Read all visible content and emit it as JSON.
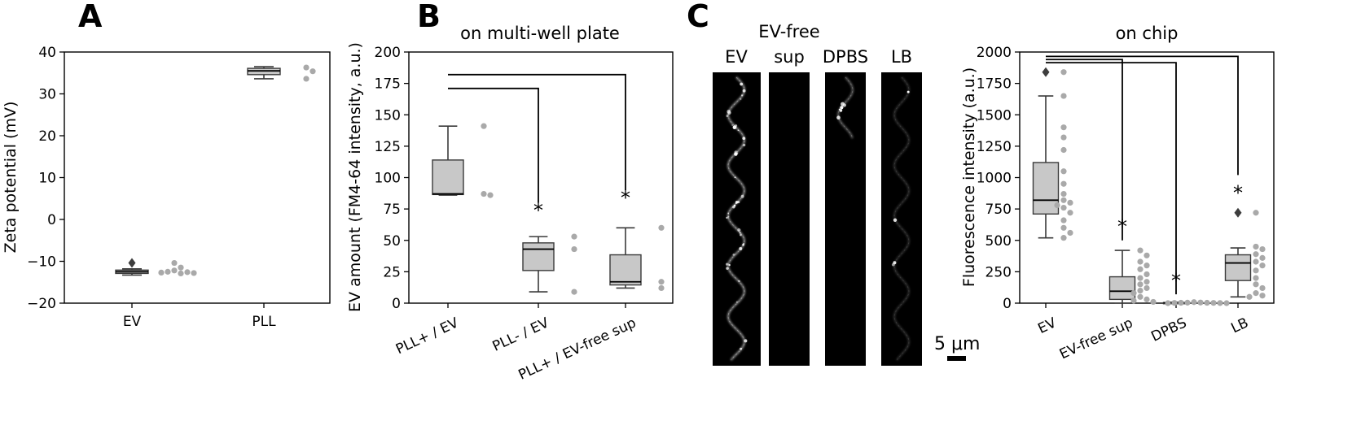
{
  "colors": {
    "box_fill": "#c8c8c8",
    "box_edge": "#3a3a3a",
    "point": "#a9a9a9",
    "text": "#000000",
    "micro_bg": "#000000"
  },
  "panels": {
    "a": "A",
    "b": "B",
    "c": "C"
  },
  "chart_data": [
    {
      "type": "box",
      "panel": "A",
      "title": "",
      "xlabel": "",
      "ylabel": "Zeta potential (mV)",
      "ylim": [
        -20,
        40
      ],
      "yticks": [
        "−20",
        "−10",
        "0",
        "10",
        "20",
        "30",
        "40"
      ],
      "ytick_values": [
        -20,
        -10,
        0,
        10,
        20,
        30,
        40
      ],
      "grid": false,
      "categories": [
        "EV",
        "PLL"
      ],
      "boxes": [
        {
          "whislo": -13.3,
          "q1": -12.9,
          "med": -12.5,
          "q3": -12.1,
          "whishi": -11.8,
          "fliers": [
            -10.4
          ]
        },
        {
          "whislo": 33.6,
          "q1": 34.6,
          "med": 35.5,
          "q3": 36.1,
          "whishi": 36.5,
          "fliers": []
        }
      ],
      "points": [
        [
          -10.4,
          -11.5,
          -12.2,
          -12.8,
          -12.5,
          -12.6,
          -12.9,
          -12.7
        ],
        [
          36.3,
          35.4,
          33.6
        ]
      ],
      "annotations": []
    },
    {
      "type": "box",
      "panel": "B",
      "title": "on multi-well plate",
      "xlabel": "",
      "ylabel": "EV amount (FM4-64 intensity, a.u.)",
      "ylim": [
        0,
        200
      ],
      "yticks": [
        "0",
        "25",
        "50",
        "75",
        "100",
        "125",
        "150",
        "175",
        "200"
      ],
      "ytick_values": [
        0,
        25,
        50,
        75,
        100,
        125,
        150,
        175,
        200
      ],
      "grid": false,
      "categories": [
        "PLL+ / EV",
        "PLL- / EV",
        "PLL+ / EV-free sup"
      ],
      "boxes": [
        {
          "whislo": 86,
          "q1": 86.5,
          "med": 87,
          "q3": 114,
          "whishi": 141,
          "fliers": []
        },
        {
          "whislo": 9,
          "q1": 26,
          "med": 43,
          "q3": 48,
          "whishi": 53,
          "fliers": []
        },
        {
          "whislo": 12,
          "q1": 14.5,
          "med": 17,
          "q3": 38.5,
          "whishi": 60,
          "fliers": []
        }
      ],
      "points": [
        [
          141,
          87,
          86
        ],
        [
          53,
          43,
          9
        ],
        [
          60,
          17,
          12
        ]
      ],
      "annotations": [
        {
          "text": "*",
          "category": 1,
          "y": 75
        },
        {
          "text": "*",
          "category": 2,
          "y": 85
        }
      ],
      "brackets": [
        {
          "from": 0,
          "to": 1,
          "y": 171,
          "end_y": 80
        },
        {
          "from": 0,
          "to": 2,
          "y": 182,
          "end_y": 90
        }
      ]
    },
    {
      "type": "box",
      "panel": "C",
      "title": "on chip",
      "xlabel": "",
      "ylabel": "Fluorescence intensity (a.u.)",
      "ylim": [
        0,
        2000
      ],
      "yticks": [
        "0",
        "250",
        "500",
        "750",
        "1000",
        "1250",
        "1500",
        "1750",
        "2000"
      ],
      "ytick_values": [
        0,
        250,
        500,
        750,
        1000,
        1250,
        1500,
        1750,
        2000
      ],
      "grid": false,
      "categories": [
        "EV",
        "EV-free sup",
        "DPBS",
        "LB"
      ],
      "boxes": [
        {
          "whislo": 520,
          "q1": 710,
          "med": 820,
          "q3": 1120,
          "whishi": 1650,
          "fliers": [
            1840
          ]
        },
        {
          "whislo": 0,
          "q1": 30,
          "med": 95,
          "q3": 210,
          "whishi": 420,
          "fliers": []
        },
        {
          "whislo": 0,
          "q1": 0,
          "med": 3,
          "q3": 5,
          "whishi": 8,
          "fliers": []
        },
        {
          "whislo": 50,
          "q1": 180,
          "med": 320,
          "q3": 385,
          "whishi": 440,
          "fliers": [
            720
          ]
        }
      ],
      "points": [
        [
          1840,
          1650,
          1400,
          1320,
          1220,
          1050,
          950,
          870,
          820,
          800,
          780,
          760,
          720,
          660,
          600,
          560,
          520
        ],
        [
          420,
          380,
          330,
          300,
          270,
          230,
          200,
          170,
          150,
          120,
          100,
          80,
          50,
          30,
          20,
          10
        ],
        [
          8,
          5,
          4,
          3,
          3,
          2,
          2,
          1,
          0,
          0
        ],
        [
          720,
          450,
          430,
          390,
          360,
          330,
          300,
          260,
          200,
          150,
          120,
          80,
          60,
          50
        ]
      ],
      "annotations": [
        {
          "text": "*",
          "category": 1,
          "y": 620
        },
        {
          "text": "*",
          "category": 2,
          "y": 190
        },
        {
          "text": "*",
          "category": 3,
          "y": 890
        }
      ],
      "brackets": [
        {
          "from": 0,
          "to": 1,
          "y": 1940,
          "end_y": 500
        },
        {
          "from": 0,
          "to": 2,
          "y": 1915,
          "end_y": 70
        },
        {
          "from": 0,
          "to": 3,
          "y": 1965,
          "end_y": 1020
        }
      ]
    }
  ],
  "micrographs": {
    "labels": [
      {
        "line1": "",
        "line2": "EV"
      },
      {
        "line1": "EV-free",
        "line2": "sup"
      },
      {
        "line1": "",
        "line2": "DPBS"
      },
      {
        "line1": "",
        "line2": "LB"
      }
    ],
    "scale_bar": "5 μm"
  }
}
